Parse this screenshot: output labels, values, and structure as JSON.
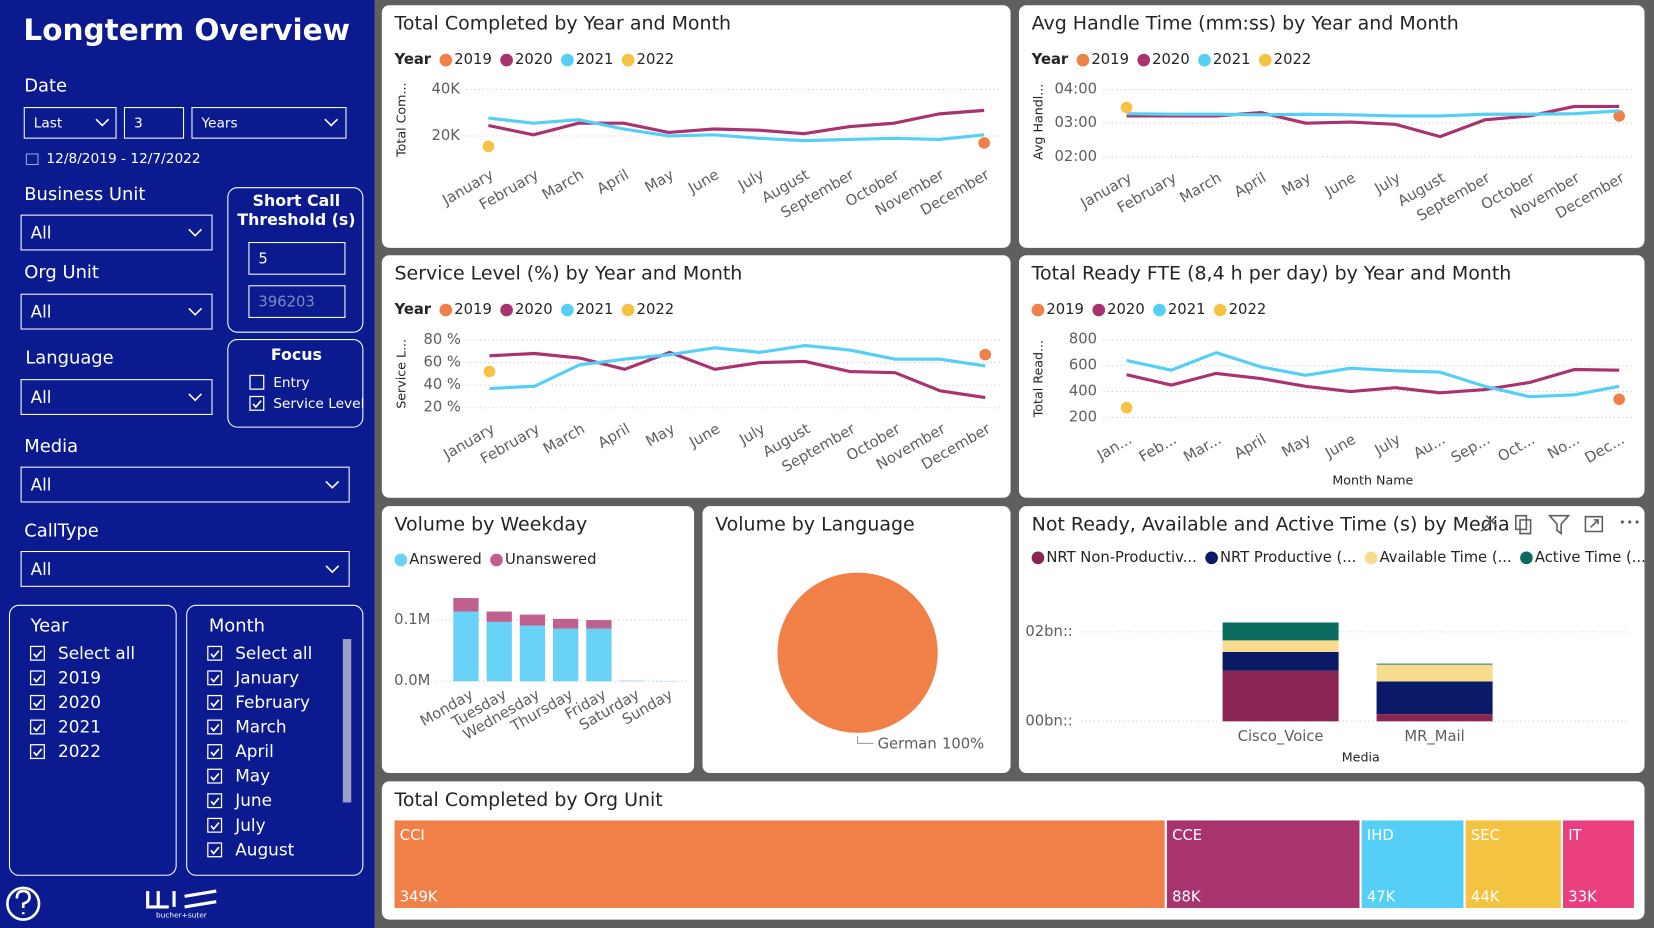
{
  "sidebar": {
    "title": "Longterm Overview",
    "date": {
      "label": "Date",
      "mode": "Last",
      "count": "3",
      "unit": "Years",
      "range": "12/8/2019 - 12/7/2022"
    },
    "business_unit": {
      "label": "Business Unit",
      "value": "All"
    },
    "short_call": {
      "label": [
        "Short Call",
        "Threshold (s)"
      ],
      "value": "5",
      "placeholder": "396203"
    },
    "org_unit": {
      "label": "Org Unit",
      "value": "All"
    },
    "language": {
      "label": "Language",
      "value": "All"
    },
    "focus": {
      "label": "Focus",
      "options": [
        {
          "label": "Entry",
          "checked": false
        },
        {
          "label": "Service Level",
          "checked": true
        }
      ]
    },
    "media": {
      "label": "Media",
      "value": "All"
    },
    "call_type": {
      "label": "CallType",
      "value": "All"
    },
    "year": {
      "label": "Year",
      "items": [
        "Select all",
        "2019",
        "2020",
        "2021",
        "2022"
      ]
    },
    "month": {
      "label": "Month",
      "items": [
        "Select all",
        "January",
        "February",
        "March",
        "April",
        "May",
        "June",
        "July",
        "August"
      ]
    },
    "logo": "bucher+suter"
  },
  "chart_data": [
    {
      "type": "line",
      "title": "Total Completed by Year and Month",
      "legend_title": "Year",
      "y_label": "Total Com...",
      "categories": [
        "January",
        "February",
        "March",
        "April",
        "May",
        "June",
        "July",
        "August",
        "September",
        "October",
        "November",
        "December"
      ],
      "series": [
        {
          "name": "2019",
          "color": "#f08048",
          "values": [
            null,
            null,
            null,
            null,
            null,
            null,
            null,
            null,
            null,
            null,
            null,
            17000
          ]
        },
        {
          "name": "2020",
          "color": "#a8336f",
          "values": [
            24500,
            20500,
            25500,
            25500,
            21500,
            23000,
            22500,
            21000,
            24000,
            25500,
            29500,
            31000
          ]
        },
        {
          "name": "2021",
          "color": "#55cff5",
          "values": [
            27700,
            25500,
            27000,
            23000,
            20000,
            20500,
            19000,
            18000,
            18500,
            19000,
            18500,
            20500
          ]
        },
        {
          "name": "2022",
          "color": "#f5c342",
          "values": [
            15500,
            null,
            null,
            null,
            null,
            null,
            null,
            null,
            null,
            null,
            null,
            null
          ]
        }
      ],
      "ylim": [
        10000,
        44000
      ],
      "yticks": [
        {
          "value": 20000,
          "label": "20K"
        },
        {
          "value": 40000,
          "label": "40K"
        }
      ],
      "grid": true
    },
    {
      "type": "line",
      "title": "Avg Handle Time (mm:ss) by Year and Month",
      "legend_title": "Year",
      "y_label": "Avg Handl...",
      "categories": [
        "January",
        "February",
        "March",
        "April",
        "May",
        "June",
        "July",
        "August",
        "September",
        "October",
        "November",
        "December"
      ],
      "series": [
        {
          "name": "2019",
          "color": "#f08048",
          "values": [
            null,
            null,
            null,
            null,
            null,
            null,
            null,
            null,
            null,
            null,
            null,
            193
          ]
        },
        {
          "name": "2020",
          "color": "#a8336f",
          "values": [
            193,
            193,
            193,
            199,
            180,
            182,
            178,
            156,
            186,
            193,
            210,
            210
          ]
        },
        {
          "name": "2021",
          "color": "#55cff5",
          "values": [
            197,
            196,
            196,
            195,
            196,
            195,
            193,
            193,
            196,
            196,
            197,
            202
          ]
        },
        {
          "name": "2022",
          "color": "#f5c342",
          "values": [
            208,
            null,
            null,
            null,
            null,
            null,
            null,
            null,
            null,
            null,
            null,
            null
          ]
        }
      ],
      "ylim": [
        110,
        255
      ],
      "yticks": [
        {
          "value": 120,
          "label": "02:00"
        },
        {
          "value": 180,
          "label": "03:00"
        },
        {
          "value": 240,
          "label": "04:00"
        }
      ],
      "grid": true
    },
    {
      "type": "line",
      "title": "Service Level (%) by Year and Month",
      "legend_title": "Year",
      "y_label": "Service L...",
      "categories": [
        "January",
        "February",
        "March",
        "April",
        "May",
        "June",
        "July",
        "August",
        "September",
        "October",
        "November",
        "December"
      ],
      "series": [
        {
          "name": "2019",
          "color": "#f08048",
          "values": [
            null,
            null,
            null,
            null,
            null,
            null,
            null,
            null,
            null,
            null,
            null,
            67
          ]
        },
        {
          "name": "2020",
          "color": "#a8336f",
          "values": [
            66,
            68,
            64,
            54,
            69,
            54,
            60,
            61,
            52,
            51,
            35,
            29
          ]
        },
        {
          "name": "2021",
          "color": "#55cff5",
          "values": [
            37,
            39,
            58,
            63,
            67,
            73,
            69,
            75,
            71,
            63,
            63,
            57
          ]
        },
        {
          "name": "2022",
          "color": "#f5c342",
          "values": [
            52,
            null,
            null,
            null,
            null,
            null,
            null,
            null,
            null,
            null,
            null,
            null
          ]
        }
      ],
      "ylim": [
        15,
        85
      ],
      "yticks": [
        {
          "value": 20,
          "label": "20 %"
        },
        {
          "value": 40,
          "label": "40 %"
        },
        {
          "value": 60,
          "label": "60 %"
        },
        {
          "value": 80,
          "label": "80 %"
        }
      ],
      "grid": true
    },
    {
      "type": "line",
      "title": "Total Ready FTE (8,4 h per day) by Year and Month",
      "y_label": "Total Read...",
      "x_label": "Month Name",
      "categories": [
        "Jan...",
        "Feb...",
        "Mar...",
        "April",
        "May",
        "June",
        "July",
        "Au...",
        "Sep...",
        "Oct...",
        "No...",
        "Dec..."
      ],
      "series": [
        {
          "name": "2019",
          "color": "#f08048",
          "values": [
            null,
            null,
            null,
            null,
            null,
            null,
            null,
            null,
            null,
            null,
            null,
            340
          ]
        },
        {
          "name": "2020",
          "color": "#a8336f",
          "values": [
            530,
            450,
            540,
            500,
            440,
            400,
            430,
            390,
            415,
            470,
            570,
            565
          ]
        },
        {
          "name": "2021",
          "color": "#55cff5",
          "values": [
            640,
            565,
            700,
            590,
            525,
            580,
            560,
            550,
            440,
            360,
            375,
            440
          ]
        },
        {
          "name": "2022",
          "color": "#f5c342",
          "values": [
            275,
            null,
            null,
            null,
            null,
            null,
            null,
            null,
            null,
            null,
            null,
            null
          ]
        }
      ],
      "ylim": [
        150,
        850
      ],
      "yticks": [
        200,
        400,
        600,
        800
      ],
      "grid": true
    },
    {
      "type": "bar",
      "stacked": true,
      "title": "Volume by Weekday",
      "categories": [
        "Monday",
        "Tuesday",
        "Wednesday",
        "Thursday",
        "Friday",
        "Saturday",
        "Sunday"
      ],
      "series": [
        {
          "name": "Answered",
          "color": "#69d2f7",
          "values": [
            114000,
            97000,
            91000,
            86000,
            86000,
            800,
            400
          ]
        },
        {
          "name": "Unanswered",
          "color": "#c0608e",
          "values": [
            22000,
            17000,
            18000,
            16000,
            14000,
            100,
            50
          ]
        }
      ],
      "ylim": [
        0,
        150000
      ],
      "yticks": [
        {
          "value": 0,
          "label": "0.0M"
        },
        {
          "value": 100000,
          "label": "0.1M"
        }
      ],
      "grid": true
    },
    {
      "type": "pie",
      "title": "Volume by Language",
      "categories": [
        "German"
      ],
      "values": [
        100
      ],
      "value_labels": [
        "100%"
      ],
      "colors": [
        "#f08048"
      ]
    },
    {
      "type": "bar",
      "stacked": true,
      "title": "Not Ready, Available and Active Time (s) by Media",
      "x_label": "Media",
      "categories": [
        "Cisco_Voice",
        "MR_Mail"
      ],
      "series": [
        {
          "name": "NRT Non-Productiv...",
          "color": "#8a2452",
          "values": [
            1130000000,
            160000000
          ]
        },
        {
          "name": "NRT Productive (...",
          "color": "#0a1a66",
          "values": [
            420000000,
            730000000
          ]
        },
        {
          "name": "Available Time (...",
          "color": "#f7dc8e",
          "values": [
            260000000,
            380000000
          ]
        },
        {
          "name": "Active Time (...",
          "color": "#0a6b5e",
          "values": [
            400000000,
            20000000
          ]
        }
      ],
      "ylim": [
        0,
        2500000000
      ],
      "yticks": [
        {
          "value": 0,
          "label": "00bn::"
        },
        {
          "value": 2000000000,
          "label": "02bn::"
        }
      ],
      "grid": true
    },
    {
      "type": "treemap",
      "title": "Total Completed by Org Unit",
      "categories": [
        "CCI",
        "CCE",
        "IHD",
        "SEC",
        "IT"
      ],
      "values": [
        349000,
        88000,
        47000,
        44000,
        33000
      ],
      "value_labels": [
        "349K",
        "88K",
        "47K",
        "44K",
        "33K"
      ],
      "colors": [
        "#f08048",
        "#a8336f",
        "#55cff5",
        "#f5c342",
        "#ea3f7f"
      ]
    }
  ]
}
